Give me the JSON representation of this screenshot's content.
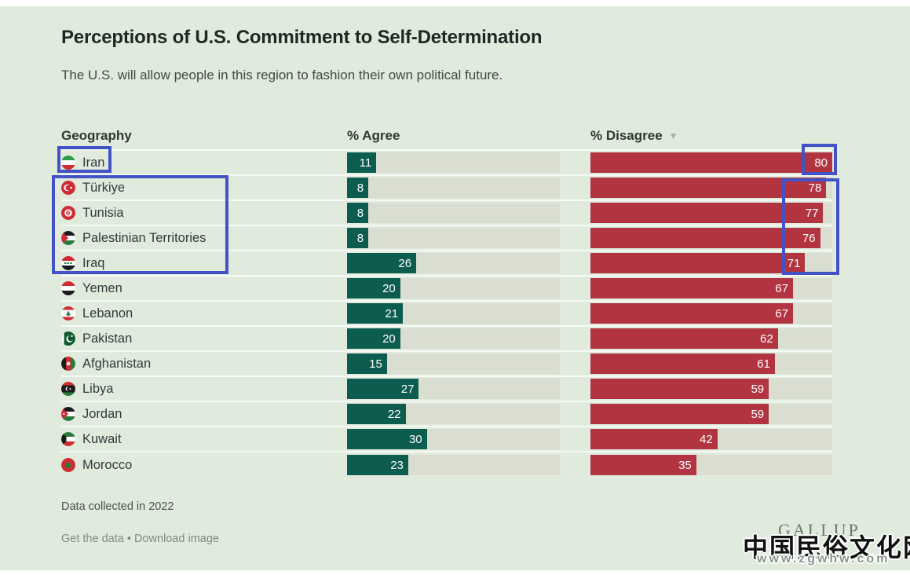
{
  "header": {
    "title": "Perceptions of U.S. Commitment to Self-Determination",
    "subtitle": "The U.S. will allow people in this region to fashion their own political future."
  },
  "table": {
    "columns": {
      "geography": "Geography",
      "agree": "% Agree",
      "disagree": "% Disagree"
    },
    "sort_icon": "▼",
    "sorted_by": "% Disagree",
    "scale_max": 80,
    "rows": [
      {
        "country": "Iran",
        "flag": "iran",
        "agree": 11,
        "disagree": 80
      },
      {
        "country": "Türkiye",
        "flag": "turkiye",
        "agree": 8,
        "disagree": 78
      },
      {
        "country": "Tunisia",
        "flag": "tunisia",
        "agree": 8,
        "disagree": 77
      },
      {
        "country": "Palestinian Territories",
        "flag": "palestine",
        "agree": 8,
        "disagree": 76
      },
      {
        "country": "Iraq",
        "flag": "iraq",
        "agree": 26,
        "disagree": 71
      },
      {
        "country": "Yemen",
        "flag": "yemen",
        "agree": 20,
        "disagree": 67
      },
      {
        "country": "Lebanon",
        "flag": "lebanon",
        "agree": 21,
        "disagree": 67
      },
      {
        "country": "Pakistan",
        "flag": "pakistan",
        "agree": 20,
        "disagree": 62
      },
      {
        "country": "Afghanistan",
        "flag": "afghanistan",
        "agree": 15,
        "disagree": 61
      },
      {
        "country": "Libya",
        "flag": "libya",
        "agree": 27,
        "disagree": 59
      },
      {
        "country": "Jordan",
        "flag": "jordan",
        "agree": 22,
        "disagree": 59
      },
      {
        "country": "Kuwait",
        "flag": "kuwait",
        "agree": 30,
        "disagree": 42
      },
      {
        "country": "Morocco",
        "flag": "morocco",
        "agree": 23,
        "disagree": 35
      }
    ]
  },
  "chart_data": {
    "type": "bar",
    "orientation": "horizontal",
    "title": "Perceptions of U.S. Commitment to Self-Determination",
    "subtitle": "The U.S. will allow people in this region to fashion their own political future.",
    "categories": [
      "Iran",
      "Türkiye",
      "Tunisia",
      "Palestinian Territories",
      "Iraq",
      "Yemen",
      "Lebanon",
      "Pakistan",
      "Afghanistan",
      "Libya",
      "Jordan",
      "Kuwait",
      "Morocco"
    ],
    "series": [
      {
        "name": "% Agree",
        "color": "#0d5c50",
        "values": [
          11,
          8,
          8,
          8,
          26,
          20,
          21,
          20,
          15,
          27,
          22,
          30,
          23
        ]
      },
      {
        "name": "% Disagree",
        "color": "#b23440",
        "values": [
          80,
          78,
          77,
          76,
          71,
          67,
          67,
          62,
          61,
          59,
          59,
          42,
          35
        ]
      }
    ],
    "xlim": [
      0,
      80
    ],
    "grid": false,
    "legend_position": "column-headers",
    "sort": "% Disagree descending",
    "note": "Data collected in 2022"
  },
  "footer": {
    "note": "Data collected in 2022",
    "links": {
      "get_data": "Get the data",
      "separator": "•",
      "download": "Download image"
    },
    "brand": "GALLUP"
  },
  "watermark": {
    "line1": "中国民俗文化网",
    "line2": "www.zgwhw.com"
  },
  "annotations": {
    "color": "#4353c5",
    "boxes": [
      "iran-geography-highlight",
      "turkiye-to-iraq-geography-highlight",
      "iran-disagree-value-highlight",
      "turkiye-to-iraq-disagree-values-highlight"
    ]
  },
  "colors": {
    "background": "#e0ebde",
    "agree_bar": "#0d5c50",
    "disagree_bar": "#b23440",
    "bar_track": "#d9ded1",
    "annotation_blue": "#4353c5"
  }
}
